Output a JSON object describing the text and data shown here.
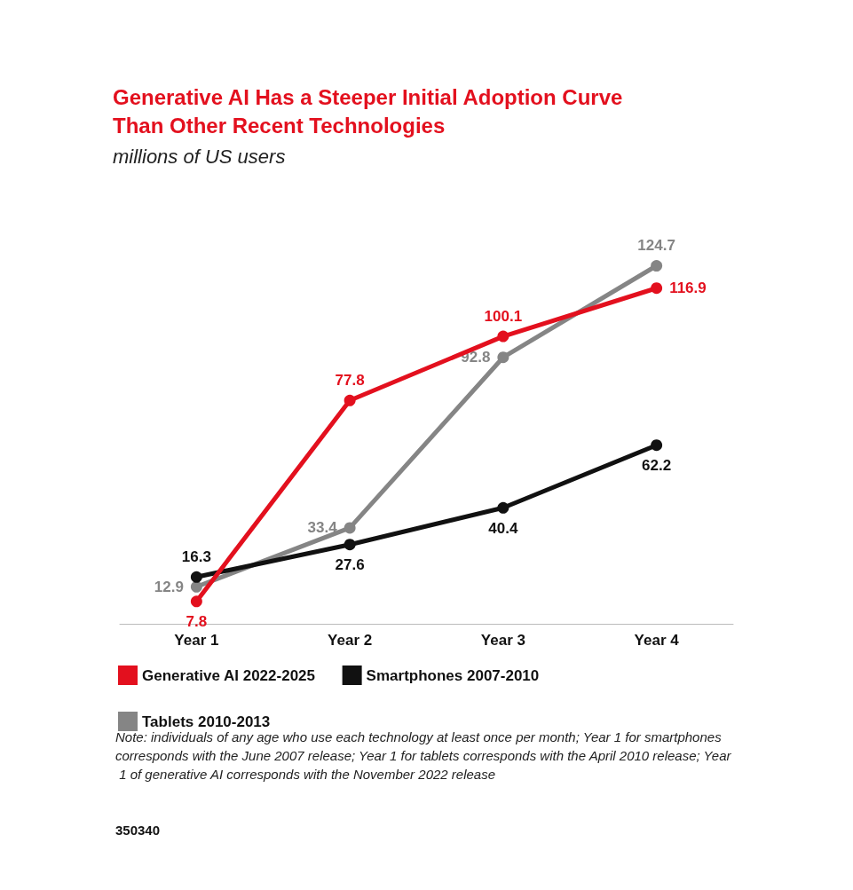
{
  "chart_data": {
    "type": "line",
    "title": "Generative AI Has a Steeper Initial Adoption Curve\nThan Other Recent Technologies",
    "subtitle": "millions of US users",
    "categories": [
      "Year 1",
      "Year 2",
      "Year 3",
      "Year 4"
    ],
    "series": [
      {
        "name": "Generative AI 2022-2025",
        "color": "#e3101e",
        "values": [
          7.8,
          77.8,
          100.1,
          116.9
        ]
      },
      {
        "name": "Smartphones 2007-2010",
        "color": "#111111",
        "values": [
          16.3,
          27.6,
          40.4,
          62.2
        ]
      },
      {
        "name": "Tablets 2010-2013",
        "color": "#858585",
        "values": [
          12.9,
          33.4,
          92.8,
          124.7
        ]
      }
    ],
    "data_labels": true,
    "marker": "circle",
    "line_style": "solid",
    "grid": false,
    "legend": "bottom left",
    "annotations": [
      "Note: individuals of any age who use each technology at least once per month; Year 1 for smartphones corresponds with the June 2007 release; Year 1 for tablets corresponds with the April 2010 release; Year 1 of generative AI corresponds with the November 2022 release",
      "350340"
    ]
  }
}
